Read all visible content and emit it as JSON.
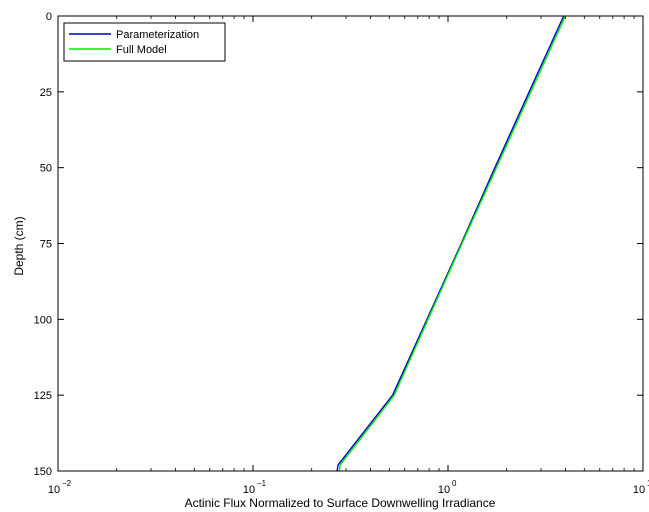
{
  "chart_data": {
    "type": "line",
    "title": "",
    "xlabel": "Actinic Flux Normalized to Surface Downwelling Irradiance",
    "ylabel": "Depth (cm)",
    "x_scale": "log",
    "xlim": [
      0.01,
      10
    ],
    "ylim": [
      0,
      150
    ],
    "y_reversed": true,
    "x_ticks": [
      {
        "value": 0.01,
        "base": "10",
        "exp": "−2"
      },
      {
        "value": 0.1,
        "base": "10",
        "exp": "−1"
      },
      {
        "value": 1,
        "base": "10",
        "exp": "0"
      },
      {
        "value": 10,
        "base": "10",
        "exp": "1"
      }
    ],
    "y_ticks": [
      0,
      25,
      50,
      75,
      100,
      125,
      150
    ],
    "grid": false,
    "legend_position": "top-left",
    "series": [
      {
        "name": "Parameterization",
        "color": "#0000cc",
        "points": [
          [
            3.92,
            0
          ],
          [
            2.61,
            25
          ],
          [
            1.74,
            50
          ],
          [
            1.17,
            75
          ],
          [
            0.78,
            100
          ],
          [
            0.52,
            125
          ],
          [
            0.273,
            148
          ],
          [
            0.27,
            150
          ]
        ]
      },
      {
        "name": "Full Model",
        "color": "#00ee00",
        "points": [
          [
            4.0,
            0
          ],
          [
            2.66,
            25
          ],
          [
            1.77,
            50
          ],
          [
            1.18,
            75
          ],
          [
            0.79,
            100
          ],
          [
            0.53,
            125
          ],
          [
            0.28,
            148
          ],
          [
            0.277,
            150
          ]
        ]
      }
    ]
  }
}
